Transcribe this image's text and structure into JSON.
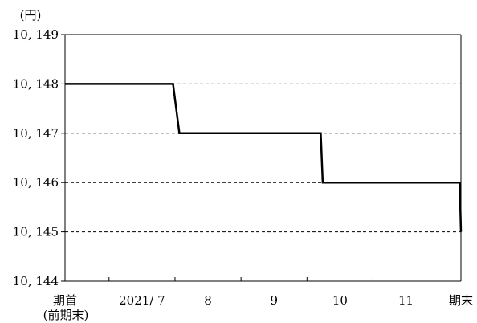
{
  "chart_data": {
    "type": "line",
    "title": "",
    "xlabel": "",
    "ylabel": "",
    "y_unit": "(円)",
    "ylim": [
      10144,
      10149
    ],
    "y_ticks": [
      10144,
      10145,
      10146,
      10147,
      10148,
      10149
    ],
    "y_tick_labels": [
      "10, 144",
      "10, 145",
      "10, 146",
      "10, 147",
      "10, 148",
      "10, 149"
    ],
    "grid": "horizontal-dashed",
    "legend": "none",
    "x_range": [
      0,
      6
    ],
    "x_ticks": [
      0,
      0.667,
      1.667,
      2.667,
      3.667,
      4.667,
      6
    ],
    "x_labels": [
      {
        "x": 0,
        "text": "期首"
      },
      {
        "x": 1.167,
        "text": "2021/ 7"
      },
      {
        "x": 2.167,
        "text": "8"
      },
      {
        "x": 3.167,
        "text": "9"
      },
      {
        "x": 4.167,
        "text": "10"
      },
      {
        "x": 5.167,
        "text": "11"
      },
      {
        "x": 6,
        "text": "期末"
      }
    ],
    "x_sublabel": {
      "x": 0,
      "text": "(前期末)"
    },
    "series": [
      {
        "color": "#000000",
        "points": [
          {
            "x": 0,
            "y": 10148
          },
          {
            "x": 1.637,
            "y": 10148
          },
          {
            "x": 1.733,
            "y": 10147
          },
          {
            "x": 3.875,
            "y": 10147
          },
          {
            "x": 3.905,
            "y": 10146
          },
          {
            "x": 5.98,
            "y": 10146
          },
          {
            "x": 6.0,
            "y": 10145
          }
        ]
      }
    ]
  }
}
